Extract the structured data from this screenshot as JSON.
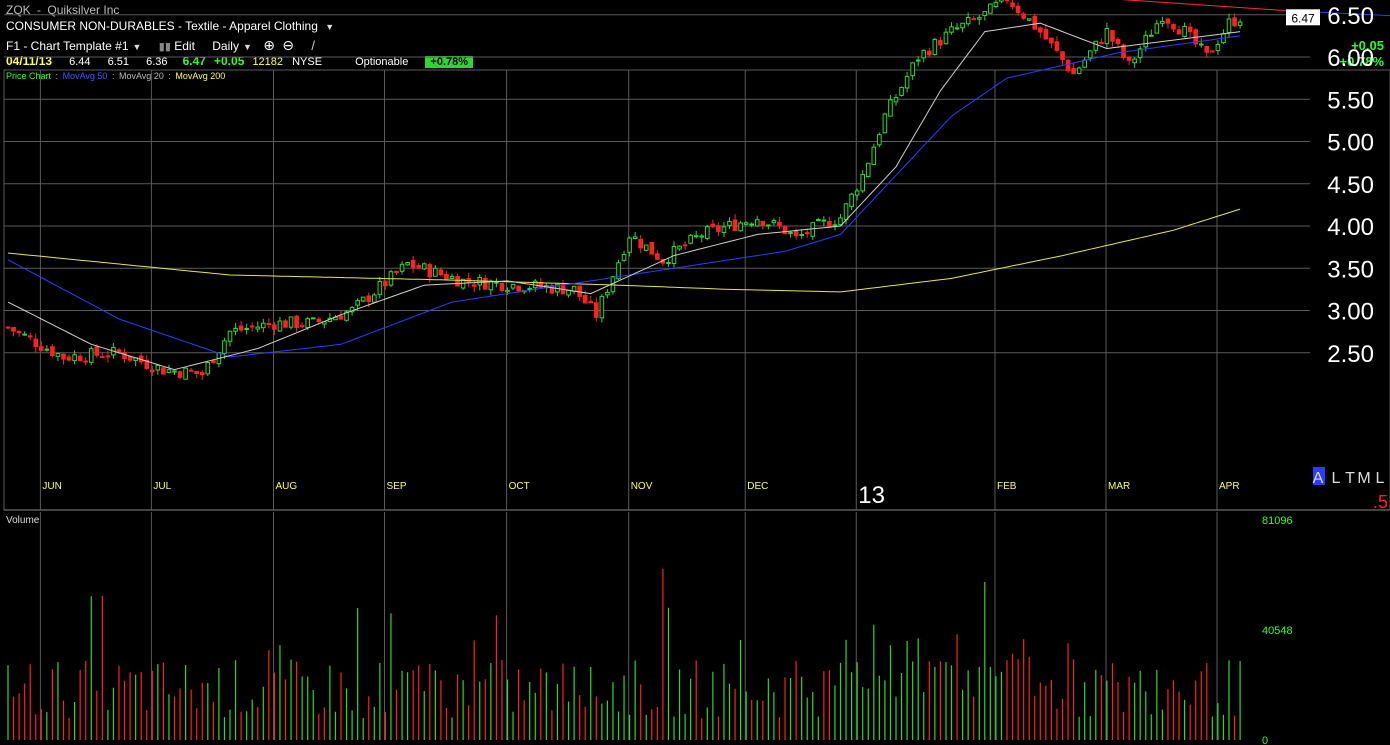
{
  "header": {
    "symbol": "ZQK",
    "dash": "-",
    "company": "Quiksilver Inc",
    "sector": "CONSUMER NON-DURABLES - Textile - Apparel Clothing",
    "template": "F1 - Chart Template #1",
    "edit_label": "Edit",
    "period": "Daily",
    "date": "04/11/13",
    "open": "6.44",
    "high": "6.51",
    "low": "6.36",
    "close": "6.47",
    "change": "+0.05",
    "volume": "12182",
    "exchange": "NYSE",
    "optionable": "Optionable",
    "pct_change": "+0.78%",
    "top_change": "+0.05",
    "top_pct": "+0.78%"
  },
  "legend": {
    "price_chart": "Price Chart",
    "sep": ":",
    "ma50": "MovAvg 50",
    "ma20": "MovAvg 20",
    "ma200": "MovAvg 200"
  },
  "colors": {
    "up": "#2bd92b",
    "down": "#ff2020",
    "ma20": "#cfcfcf",
    "ma50": "#2a3cff",
    "ma200": "#e6e64a",
    "trend": "#ff2a2a",
    "grid": "#5a5a5a"
  },
  "chart_data": [
    {
      "type": "line",
      "title": "",
      "y_ticks": [
        "6.50",
        "6.00",
        "5.50",
        "5.00",
        "4.50",
        "4.00",
        "3.50",
        "3.00",
        "2.50"
      ],
      "ylim": [
        2.0,
        7.0
      ],
      "months": [
        "JUN",
        "JUL",
        "AUG",
        "SEP",
        "OCT",
        "NOV",
        "DEC",
        "FEB",
        "MAR",
        "APR"
      ],
      "year_label": "13",
      "last_price_label": "6.47",
      "anchors_close": [
        [
          0,
          2.8
        ],
        [
          10,
          2.45
        ],
        [
          20,
          2.5
        ],
        [
          28,
          2.3
        ],
        [
          35,
          2.25
        ],
        [
          40,
          2.75
        ],
        [
          48,
          2.85
        ],
        [
          55,
          2.85
        ],
        [
          62,
          3.0
        ],
        [
          72,
          3.55
        ],
        [
          82,
          3.35
        ],
        [
          92,
          3.3
        ],
        [
          102,
          3.25
        ],
        [
          106,
          2.95
        ],
        [
          112,
          3.9
        ],
        [
          118,
          3.6
        ],
        [
          125,
          3.9
        ],
        [
          135,
          4.1
        ],
        [
          140,
          3.95
        ],
        [
          142,
          3.85
        ],
        [
          146,
          4.0
        ],
        [
          150,
          4.1
        ],
        [
          154,
          4.6
        ],
        [
          158,
          5.3
        ],
        [
          164,
          6.0
        ],
        [
          170,
          6.3
        ],
        [
          176,
          6.5
        ],
        [
          180,
          6.7
        ],
        [
          186,
          6.3
        ],
        [
          192,
          5.8
        ],
        [
          198,
          6.3
        ],
        [
          202,
          5.9
        ],
        [
          208,
          6.5
        ],
        [
          212,
          6.3
        ],
        [
          216,
          6.0
        ],
        [
          220,
          6.4
        ],
        [
          222,
          6.47
        ]
      ],
      "ma20_anchors": [
        [
          0,
          3.1
        ],
        [
          15,
          2.6
        ],
        [
          30,
          2.3
        ],
        [
          45,
          2.55
        ],
        [
          60,
          2.95
        ],
        [
          75,
          3.3
        ],
        [
          90,
          3.35
        ],
        [
          105,
          3.2
        ],
        [
          120,
          3.65
        ],
        [
          135,
          3.9
        ],
        [
          150,
          4.0
        ],
        [
          160,
          4.7
        ],
        [
          168,
          5.6
        ],
        [
          176,
          6.3
        ],
        [
          186,
          6.4
        ],
        [
          198,
          6.1
        ],
        [
          210,
          6.2
        ],
        [
          222,
          6.3
        ]
      ],
      "ma50_anchors": [
        [
          0,
          3.6
        ],
        [
          20,
          2.9
        ],
        [
          40,
          2.45
        ],
        [
          60,
          2.6
        ],
        [
          80,
          3.1
        ],
        [
          100,
          3.3
        ],
        [
          120,
          3.5
        ],
        [
          140,
          3.7
        ],
        [
          150,
          3.9
        ],
        [
          160,
          4.6
        ],
        [
          170,
          5.3
        ],
        [
          180,
          5.75
        ],
        [
          200,
          6.05
        ],
        [
          222,
          6.25
        ]
      ],
      "ma200_anchors": [
        [
          0,
          3.68
        ],
        [
          40,
          3.42
        ],
        [
          80,
          3.36
        ],
        [
          110,
          3.3
        ],
        [
          130,
          3.25
        ],
        [
          150,
          3.22
        ],
        [
          170,
          3.38
        ],
        [
          190,
          3.65
        ],
        [
          210,
          3.95
        ],
        [
          222,
          4.2
        ]
      ],
      "trendline": [
        [
          178,
          6.78
        ],
        [
          230,
          6.55
        ]
      ],
      "extra_labels": [
        "A",
        "L",
        "T",
        "M",
        "L",
        ".5"
      ]
    },
    {
      "type": "bar",
      "title": "Volume",
      "y_ticks": [
        "81096",
        "40548",
        "0"
      ],
      "ylim": [
        0,
        81096
      ]
    }
  ]
}
